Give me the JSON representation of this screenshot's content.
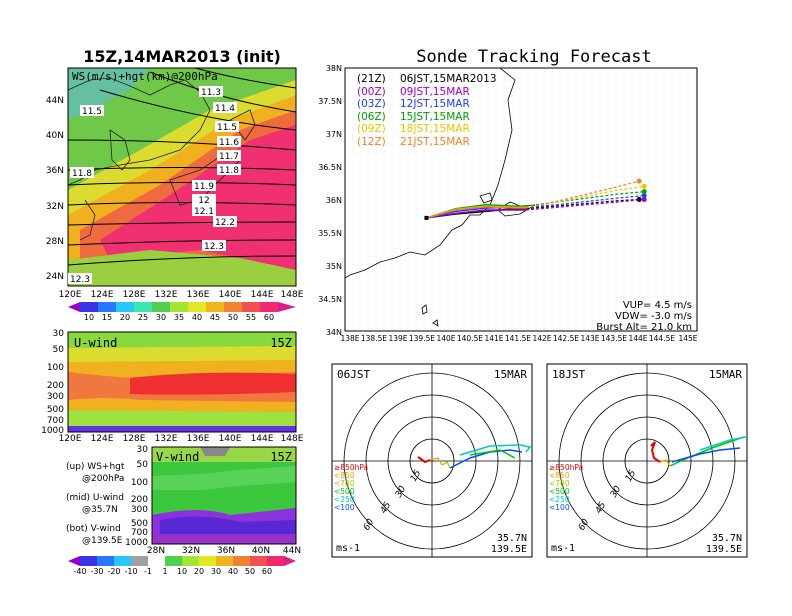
{
  "left_title": "15Z,14MAR2013 (init)",
  "right_title": "Sonde Tracking Forecast",
  "top_map": {
    "label": "WS(m/s)+hgt(km)@200hPa",
    "lat_ticks": [
      "44N",
      "40N",
      "36N",
      "32N",
      "28N",
      "24N"
    ],
    "lon_ticks": [
      "120E",
      "124E",
      "128E",
      "132E",
      "136E",
      "140E",
      "144E",
      "148E"
    ],
    "contour_labels": [
      "11.3",
      "11.4",
      "11.5",
      "11.5",
      "11.6",
      "11.7",
      "11.8",
      "11.8",
      "11.9",
      "12",
      "12.1",
      "12.2",
      "12.3",
      "12.3"
    ],
    "colorbar_ticks": [
      "10",
      "15",
      "20",
      "25",
      "30",
      "35",
      "40",
      "45",
      "50",
      "55",
      "60"
    ]
  },
  "uwind": {
    "title": "U-wind",
    "time": "15Z",
    "p_ticks": [
      "30",
      "50",
      "100",
      "200",
      "300",
      "500",
      "700",
      "1000"
    ],
    "lon_ticks": [
      "120E",
      "124E",
      "128E",
      "132E",
      "136E",
      "140E",
      "144E",
      "148E"
    ]
  },
  "vwind": {
    "title": "V-wind",
    "time": "15Z",
    "p_ticks": [
      "30",
      "50",
      "100",
      "200",
      "300",
      "500",
      "700",
      "1000"
    ],
    "lat_ticks": [
      "28N",
      "32N",
      "36N",
      "40N",
      "44N"
    ]
  },
  "legend_notes": [
    {
      "a": "(up) WS+hgt",
      "b": "@200hPa"
    },
    {
      "a": "(mid) U-wind",
      "b": "@35.7N"
    },
    {
      "a": "(bot) V-wind",
      "b": "@139.5E"
    }
  ],
  "bottom_colorbar_ticks": [
    "-40",
    "-30",
    "-20",
    "-10",
    "-1",
    "1",
    "10",
    "20",
    "30",
    "40",
    "50",
    "60"
  ],
  "track_map": {
    "lat_ticks": [
      "38N",
      "37.5N",
      "37N",
      "36.5N",
      "36N",
      "35.5N",
      "35N",
      "34.5N",
      "34N"
    ],
    "lon_ticks": [
      "138E",
      "138.5E",
      "139E",
      "139.5E",
      "140E",
      "140.5E",
      "141E",
      "141.5E",
      "142E",
      "142.5E",
      "143E",
      "143.5E",
      "144E",
      "144.5E",
      "145E"
    ],
    "legend": [
      {
        "utc": "(21Z)",
        "jst": "06JST,15MAR2013",
        "color": "#000000"
      },
      {
        "utc": "(00Z)",
        "jst": "09JST,15MAR",
        "color": "#a000c8"
      },
      {
        "utc": "(03Z)",
        "jst": "12JST,15MAR",
        "color": "#1e3cff"
      },
      {
        "utc": "(06Z)",
        "jst": "15JST,15MAR",
        "color": "#00a000"
      },
      {
        "utc": "(09Z)",
        "jst": "18JST,15MAR",
        "color": "#e6c800"
      },
      {
        "utc": "(12Z)",
        "jst": "21JST,15MAR",
        "color": "#f08228"
      }
    ],
    "vup": "VUP= 4.5 m/s",
    "vdw": "VDW= -3.0 m/s",
    "burst": "Burst Alt= 21.0 km"
  },
  "hodo1": {
    "time": "06JST",
    "date": "15MAR",
    "lat": "35.7N",
    "lon": "139.5E",
    "unit": "ms-1"
  },
  "hodo2": {
    "time": "18JST",
    "date": "15MAR",
    "lat": "35.7N",
    "lon": "139.5E",
    "unit": "ms-1"
  },
  "hodo_rings": [
    "15",
    "30",
    "45",
    "60"
  ],
  "hodo_levels": [
    {
      "text": "≥850hPa",
      "color": "#e60000"
    },
    {
      "text": "<850",
      "color": "#f0a000"
    },
    {
      "text": "<700",
      "color": "#a0c800"
    },
    {
      "text": "<500",
      "color": "#00c800"
    },
    {
      "text": "<250",
      "color": "#00c8c8"
    },
    {
      "text": "<100",
      "color": "#0050ff"
    }
  ],
  "chart_data": [
    {
      "type": "line",
      "title": "Sonde Tracking Forecast",
      "xlim": [
        138,
        145
      ],
      "ylim": [
        34,
        38
      ],
      "series": [
        {
          "name": "(21Z) 06JST,15MAR2013",
          "x": [
            139.62,
            140.2,
            140.8,
            141.35,
            141.6,
            142.2,
            142.8,
            143.4,
            143.85
          ],
          "y": [
            35.72,
            35.78,
            35.82,
            35.86,
            35.86,
            35.9,
            35.94,
            35.98,
            36.0
          ]
        },
        {
          "name": "(00Z) 09JST,15MAR",
          "x": [
            139.62,
            140.2,
            140.8,
            141.35,
            141.6,
            142.2,
            142.8,
            143.4,
            143.95
          ],
          "y": [
            35.72,
            35.79,
            35.84,
            35.84,
            35.84,
            35.88,
            35.92,
            35.96,
            36.0
          ]
        },
        {
          "name": "(03Z) 12JST,15MAR",
          "x": [
            139.62,
            140.2,
            140.8,
            141.35,
            141.6,
            142.2,
            142.8,
            143.4,
            143.95
          ],
          "y": [
            35.72,
            35.82,
            35.87,
            35.88,
            35.88,
            35.92,
            35.97,
            36.02,
            36.06
          ]
        },
        {
          "name": "(06Z) 15JST,15MAR",
          "x": [
            139.62,
            140.2,
            140.8,
            141.35,
            141.6,
            142.2,
            142.8,
            143.4,
            143.95
          ],
          "y": [
            35.72,
            35.86,
            35.92,
            35.9,
            35.9,
            35.96,
            36.02,
            36.08,
            36.12
          ]
        },
        {
          "name": "(09Z) 18JST,15MAR",
          "x": [
            139.62,
            140.2,
            140.8,
            141.35,
            141.6,
            142.2,
            142.8,
            143.4,
            143.95
          ],
          "y": [
            35.72,
            35.85,
            35.9,
            35.88,
            35.88,
            35.96,
            36.05,
            36.14,
            36.2
          ]
        },
        {
          "name": "(12Z) 21JST,15MAR",
          "x": [
            139.62,
            140.2,
            140.8,
            141.35,
            141.6,
            142.2,
            142.8,
            143.4,
            143.85
          ],
          "y": [
            35.72,
            35.84,
            35.89,
            35.87,
            35.87,
            35.97,
            36.08,
            36.19,
            36.28
          ]
        }
      ]
    }
  ]
}
